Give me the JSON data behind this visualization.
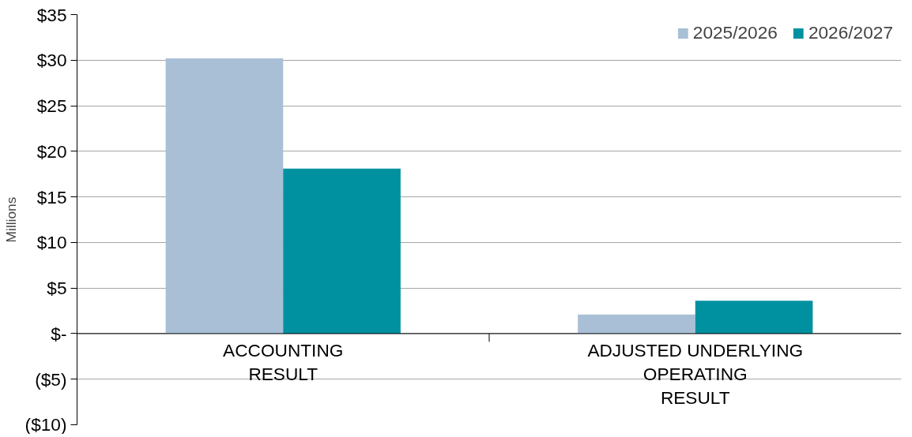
{
  "chart_data": {
    "type": "bar",
    "ylabel": "Millions",
    "categories": [
      "ACCOUNTING\nRESULT",
      "ADJUSTED UNDERLYING\nOPERATING\nRESULT"
    ],
    "series": [
      {
        "name": "2025/2026",
        "color": "#a9bfd6",
        "values": [
          30.2,
          2.1
        ]
      },
      {
        "name": "2026/2027",
        "color": "#0091a0",
        "values": [
          18.1,
          3.6
        ]
      }
    ],
    "ylim": [
      -10,
      35
    ],
    "yticks": [
      {
        "value": -10,
        "label": "($10)"
      },
      {
        "value": -5,
        "label": "($5)"
      },
      {
        "value": 0,
        "label": "$-"
      },
      {
        "value": 5,
        "label": "$5"
      },
      {
        "value": 10,
        "label": "$10"
      },
      {
        "value": 15,
        "label": "$15"
      },
      {
        "value": 20,
        "label": "$20"
      },
      {
        "value": 25,
        "label": "$25"
      },
      {
        "value": 30,
        "label": "$30"
      },
      {
        "value": 35,
        "label": "$35"
      }
    ],
    "grid": "y",
    "legend": "top right"
  }
}
